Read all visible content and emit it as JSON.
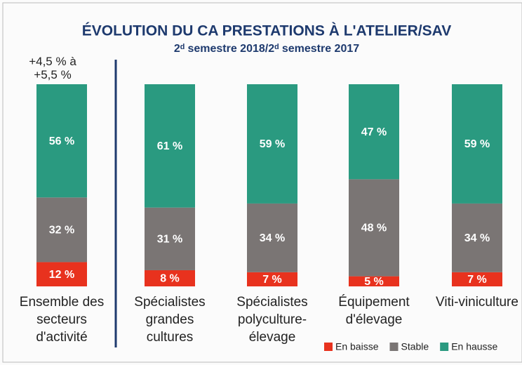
{
  "chart_data": {
    "type": "stacked_bar",
    "title": "ÉVOLUTION DU CA PRESTATIONS À L'ATELIER/SAV",
    "subtitle": "2ᵈ semestre 2018/2ᵈ semestre 2017",
    "annotation": "+4,5 % à +5,5 %",
    "categories": [
      "Ensemble des secteurs d'activité",
      "Spécialistes grandes cultures",
      "Spécialistes polyculture-élevage",
      "Équipement d'élevage",
      "Viti-viniculture"
    ],
    "series": [
      {
        "name": "En baisse",
        "color": "#e8321e",
        "values": [
          12,
          8,
          7,
          5,
          7
        ],
        "value_labels": [
          "12 %",
          "8 %",
          "7 %",
          "5 %",
          "7 %"
        ]
      },
      {
        "name": "Stable",
        "color": "#7a7574",
        "values": [
          32,
          31,
          34,
          48,
          34
        ],
        "value_labels": [
          "32 %",
          "31 %",
          "34 %",
          "48 %",
          "34 %"
        ]
      },
      {
        "name": "En hausse",
        "color": "#2a9a80",
        "values": [
          56,
          61,
          59,
          47,
          59
        ],
        "value_labels": [
          "56 %",
          "61 %",
          "59 %",
          "47 %",
          "59 %"
        ]
      }
    ],
    "ylim": [
      0,
      100
    ]
  }
}
